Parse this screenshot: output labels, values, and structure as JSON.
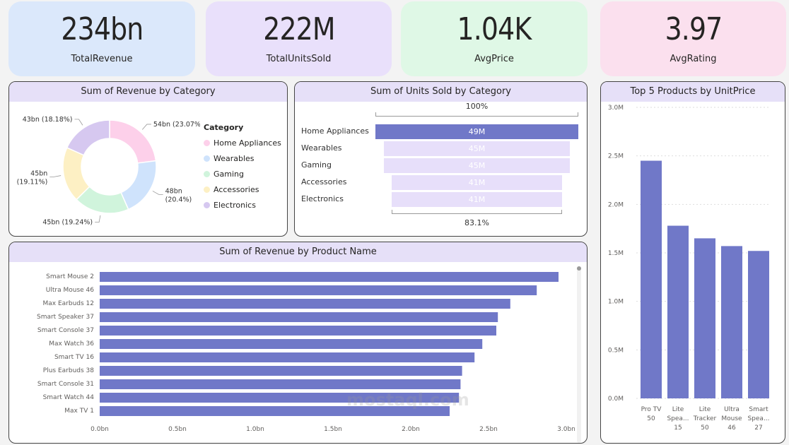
{
  "kpis": [
    {
      "value": "234bn",
      "label": "TotalRevenue",
      "color": "#dbe8fb"
    },
    {
      "value": "222M",
      "label": "TotalUnitsSold",
      "color": "#e9e0fb"
    },
    {
      "value": "1.04K",
      "label": "AvgPrice",
      "color": "#dff8e6"
    },
    {
      "value": "3.97",
      "label": "AvgRating",
      "color": "#fbe0ee"
    }
  ],
  "watermark": "mostaql.com",
  "chart_data": [
    {
      "type": "pie",
      "title": "Sum of Revenue by Category",
      "legend_title": "Category",
      "legend_position": "right",
      "slices": [
        {
          "name": "Home Appliances",
          "value": 54,
          "label": "54bn (23.07%)",
          "color": "#fdd0ea"
        },
        {
          "name": "Wearables",
          "value": 48,
          "label": "48bn (20.4%)",
          "color": "#cfe3fc"
        },
        {
          "name": "Gaming",
          "value": 45,
          "label": "45bn (19.24%)",
          "color": "#d0f4dc"
        },
        {
          "name": "Accessories",
          "value": 45,
          "label": "45bn (19.11%)",
          "color": "#fdf0c4"
        },
        {
          "name": "Electronics",
          "value": 43,
          "label": "43bn (18.18%)",
          "color": "#d6c8f0"
        }
      ]
    },
    {
      "type": "bar",
      "subtype": "funnel",
      "title": "Sum of Units Sold by Category",
      "top_label": "100%",
      "bottom_label": "83.1%",
      "categories": [
        "Home Appliances",
        "Wearables",
        "Gaming",
        "Accessories",
        "Electronics"
      ],
      "values": [
        49,
        45,
        45,
        41,
        41
      ],
      "value_labels": [
        "49M",
        "45M",
        "45M",
        "41M",
        "41M"
      ],
      "colors": {
        "first": "#7078c8",
        "rest": "#e7dffa"
      }
    },
    {
      "type": "bar",
      "orientation": "horizontal",
      "title": "Sum of Revenue by Product Name",
      "categories": [
        "Smart Mouse 2",
        "Ultra Mouse 46",
        "Max Earbuds 12",
        "Smart Speaker 37",
        "Smart Console 37",
        "Max Watch 36",
        "Smart TV 16",
        "Plus Earbuds 38",
        "Smart Console 31",
        "Smart Watch 44",
        "Max TV 1"
      ],
      "values": [
        2.95,
        2.81,
        2.64,
        2.56,
        2.55,
        2.46,
        2.41,
        2.33,
        2.32,
        2.31,
        2.25
      ],
      "xlim": [
        0,
        3.0
      ],
      "xticks": [
        "0.0bn",
        "0.5bn",
        "1.0bn",
        "1.5bn",
        "2.0bn",
        "2.5bn",
        "3.0bn"
      ],
      "color": "#7078c8"
    },
    {
      "type": "bar",
      "title": "Top 5 Products by UnitPrice",
      "categories": [
        [
          "Pro TV",
          "50"
        ],
        [
          "Lite",
          "Spea...",
          "15"
        ],
        [
          "Lite",
          "Tracker",
          "50"
        ],
        [
          "Ultra",
          "Mouse",
          "46"
        ],
        [
          "Smart",
          "Spea...",
          "27"
        ]
      ],
      "values": [
        2.45,
        1.78,
        1.65,
        1.57,
        1.52
      ],
      "ylim": [
        0,
        3.0
      ],
      "yticks": [
        "0.0M",
        "0.5M",
        "1.0M",
        "1.5M",
        "2.0M",
        "2.5M",
        "3.0M"
      ],
      "grid": true,
      "color": "#7078c8"
    }
  ]
}
